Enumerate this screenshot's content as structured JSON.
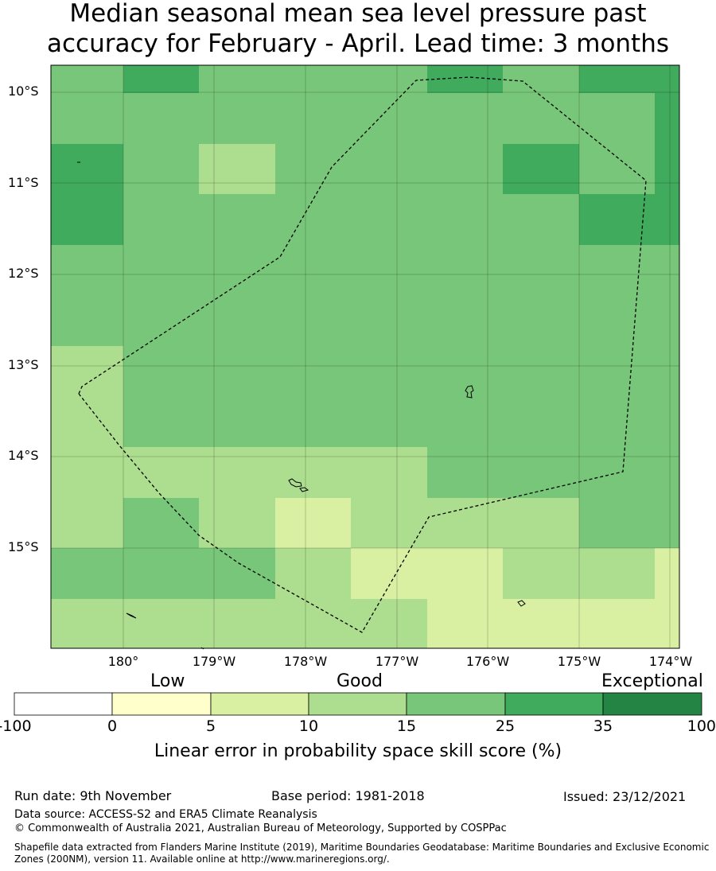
{
  "title": {
    "line1": "Median seasonal mean sea level pressure past",
    "line2": "accuracy for February - April. Lead time: 3 months"
  },
  "map": {
    "lat_labels": [
      "10°S",
      "11°S",
      "12°S",
      "13°S",
      "14°S",
      "15°S"
    ],
    "lon_labels": [
      "180°",
      "179°W",
      "178°W",
      "177°W",
      "176°W",
      "175°W",
      "174°W"
    ],
    "extent": {
      "lon_min": 179.2,
      "lon_max": 186.1,
      "lat_north": 9.7,
      "lat_south": 16.1
    },
    "grid_cells_skill_class": [
      [
        4,
        5,
        4,
        4,
        4,
        5,
        4,
        5
      ],
      [
        4,
        4,
        4,
        4,
        4,
        4,
        4,
        4
      ],
      [
        5,
        4,
        3,
        4,
        4,
        4,
        5,
        4
      ],
      [
        5,
        4,
        4,
        4,
        4,
        4,
        4,
        5
      ],
      [
        4,
        4,
        4,
        4,
        4,
        4,
        4,
        4
      ],
      [
        4,
        4,
        4,
        4,
        4,
        4,
        4,
        4
      ],
      [
        3,
        4,
        4,
        4,
        4,
        4,
        4,
        4
      ],
      [
        3,
        4,
        4,
        4,
        4,
        4,
        4,
        4
      ],
      [
        3,
        3,
        3,
        3,
        3,
        4,
        4,
        4
      ],
      [
        3,
        4,
        3,
        2,
        3,
        3,
        3,
        4
      ],
      [
        4,
        4,
        4,
        3,
        2,
        2,
        3,
        3
      ],
      [
        3,
        3,
        3,
        3,
        3,
        2,
        2,
        2
      ]
    ]
  },
  "colorbar": {
    "categories": [
      "Low",
      "Good",
      "Exceptional"
    ],
    "ticks": [
      "-100",
      "0",
      "5",
      "10",
      "15",
      "25",
      "35",
      "100"
    ],
    "colors": [
      "#ffffff",
      "#ffffcc",
      "#d9f0a3",
      "#addd8e",
      "#78c679",
      "#41ab5d",
      "#238443"
    ],
    "title": "Linear error in probability space skill score (%)"
  },
  "footer": {
    "run_date": "Run date: 9th November",
    "base_period": "Base period: 1981-2018",
    "issued": "Issued: 23/12/2021",
    "data_source": "Data source: ACCESS-S2 and ERA5 Climate Reanalysis",
    "copyright": "© Commonwealth of Australia 2021, Australian Bureau of Meteorology, Supported by COSPPac",
    "shapefile": "Shapefile data extracted from Flanders Marine Institute (2019), Maritime Boundaries Geodatabase: Maritime Boundaries and Exclusive Economic Zones (200NM), version 11. Available online at http://www.marineregions.org/."
  }
}
